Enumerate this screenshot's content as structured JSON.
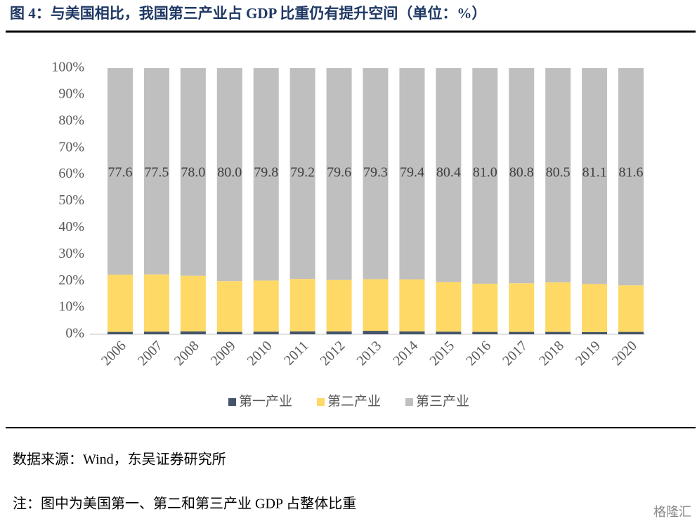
{
  "chart_data": {
    "type": "stacked_bar",
    "title": "图 4：与美国相比，我国第三产业占 GDP 比重仍有提升空间（单位：%）",
    "categories": [
      "2006",
      "2007",
      "2008",
      "2009",
      "2010",
      "2011",
      "2012",
      "2013",
      "2014",
      "2015",
      "2016",
      "2017",
      "2018",
      "2019",
      "2020"
    ],
    "series": [
      {
        "name": "第一产业",
        "color": "#44546a",
        "values": [
          0.9,
          1.0,
          1.1,
          0.9,
          1.0,
          1.1,
          1.1,
          1.3,
          1.1,
          1.0,
          0.9,
          0.9,
          0.9,
          0.8,
          0.9
        ]
      },
      {
        "name": "第二产业",
        "color": "#ffd966",
        "values": [
          21.5,
          21.5,
          20.9,
          19.1,
          19.2,
          19.7,
          19.3,
          19.4,
          19.5,
          18.6,
          18.1,
          18.3,
          18.6,
          18.1,
          17.5
        ]
      },
      {
        "name": "第三产业",
        "color": "#bfbfbf",
        "values": [
          77.6,
          77.5,
          78.0,
          80.0,
          79.8,
          79.2,
          79.6,
          79.3,
          79.4,
          80.4,
          81.0,
          80.8,
          80.5,
          81.1,
          81.6
        ],
        "value_labels": [
          "77.6",
          "77.5",
          "78.0",
          "80.0",
          "79.8",
          "79.2",
          "79.6",
          "79.3",
          "79.4",
          "80.4",
          "81.0",
          "80.8",
          "80.5",
          "81.1",
          "81.6"
        ]
      }
    ],
    "ylim": [
      0,
      100
    ],
    "yticks": [
      {
        "value": 0,
        "label": "0%"
      },
      {
        "value": 10,
        "label": "10%"
      },
      {
        "value": 20,
        "label": "20%"
      },
      {
        "value": 30,
        "label": "30%"
      },
      {
        "value": 40,
        "label": "40%"
      },
      {
        "value": 50,
        "label": "50%"
      },
      {
        "value": 60,
        "label": "60%"
      },
      {
        "value": 70,
        "label": "70%"
      },
      {
        "value": 80,
        "label": "80%"
      },
      {
        "value": 90,
        "label": "90%"
      },
      {
        "value": 100,
        "label": "100%"
      }
    ],
    "legend": "bottom"
  },
  "source": "数据来源：Wind，东吴证券研究所",
  "note": "注：图中为美国第一、第二和第三产业 GDP 占整体比重",
  "watermark": "格隆汇"
}
